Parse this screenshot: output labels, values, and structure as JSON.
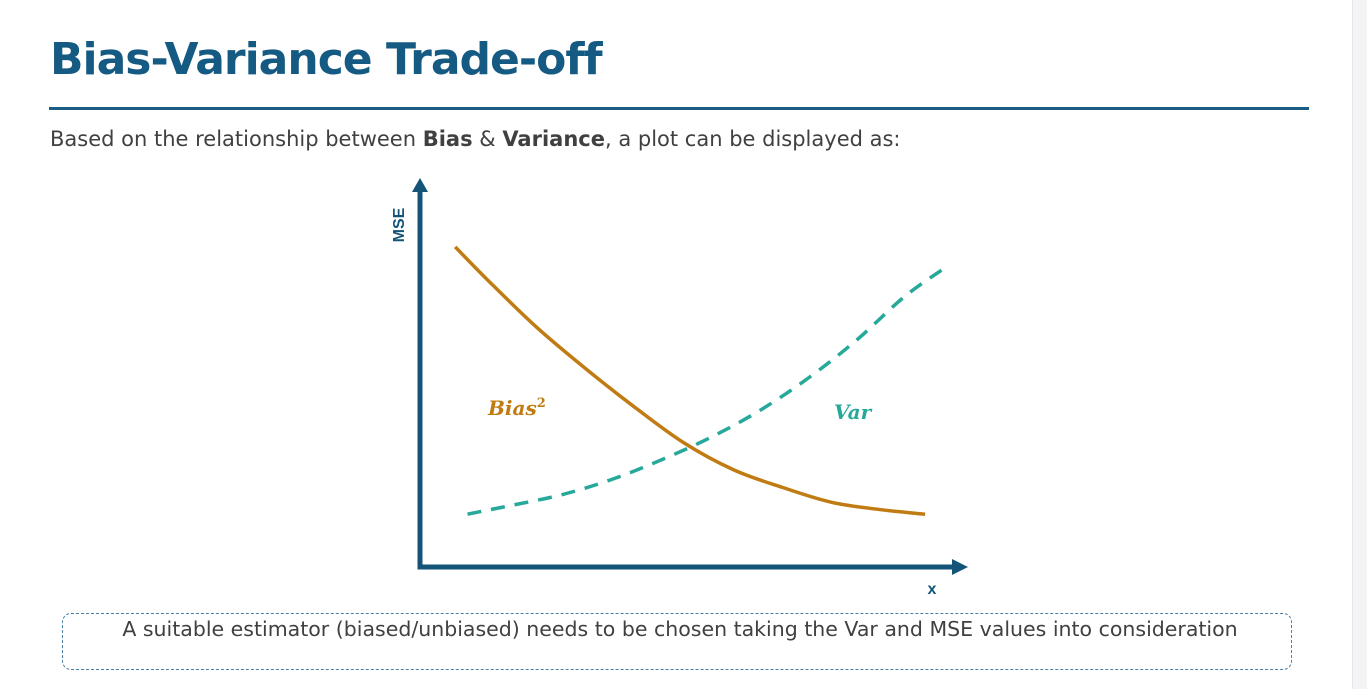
{
  "slide": {
    "title": "Bias-Variance Trade-off",
    "intro_prefix": "Based on the relationship between ",
    "intro_term1": "Bias",
    "intro_joiner": " & ",
    "intro_term2": "Variance",
    "intro_suffix": ", a plot can be displayed as:",
    "note": "A suitable estimator (biased/unbiased) needs to be chosen taking the Var and MSE values into consideration"
  },
  "colors": {
    "title": "#155a82",
    "axis": "#135478",
    "bias_curve": "#c07b12",
    "var_curve": "#26a89a",
    "text": "#404040"
  },
  "chart_data": {
    "type": "line",
    "xlabel": "x",
    "ylabel": "MSE",
    "xlim": [
      0,
      10
    ],
    "ylim": [
      0,
      10
    ],
    "grid": false,
    "axis_ticks": false,
    "series": [
      {
        "name": "Bias",
        "name_superscript": "2",
        "style": "solid",
        "x": [
          0.35,
          1,
          2,
          3,
          4,
          5,
          6,
          7,
          8,
          9,
          9.9
        ],
        "y": [
          9.6,
          8.5,
          6.9,
          5.5,
          4.2,
          3.0,
          2.1,
          1.5,
          1.0,
          0.75,
          0.6
        ]
      },
      {
        "name": "Var",
        "style": "dashed",
        "x": [
          0.6,
          1.5,
          2.5,
          3.5,
          4.5,
          5.5,
          6.5,
          7.5,
          8.5,
          9.5,
          10.4
        ],
        "y": [
          0.6,
          0.9,
          1.25,
          1.75,
          2.4,
          3.15,
          4.05,
          5.15,
          6.45,
          7.95,
          9.0
        ]
      }
    ]
  }
}
